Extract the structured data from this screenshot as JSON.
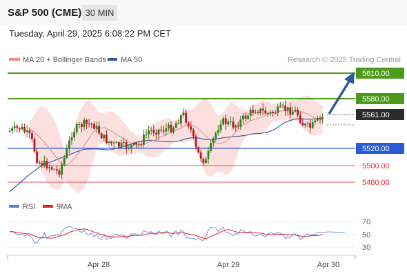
{
  "header": {
    "title": "S&P 500 (CME)",
    "timeframe": "30 MIN",
    "datetime": "Tuesday, April 29, 2025 6:08:22 PM CET"
  },
  "legend": {
    "ma20_label": "MA 20 + Bollinger Bands",
    "ma20_color": "#f08a8a",
    "ma50_label": "MA 50",
    "ma50_color": "#2c5a9c",
    "credit": "Research © 2025 Trading Central"
  },
  "rsi_legend": {
    "rsi_label": "RSI",
    "rsi_color": "#5b7fd6",
    "ma_label": "9MA",
    "ma_color": "#e02020"
  },
  "chart_data": {
    "type": "candlestick",
    "price_axis_range": [
      5470,
      5625
    ],
    "x_tick_labels": [
      "Apr 28",
      "Apr 29",
      "Apr 30"
    ],
    "current_price": "5561.00",
    "levels": [
      {
        "value": 5610,
        "label": "5610.00",
        "kind": "resistance",
        "color": "#4c9a1a"
      },
      {
        "value": 5580,
        "label": "5580.00",
        "kind": "resistance",
        "color": "#4c9a1a"
      },
      {
        "value": 5520,
        "label": "5520.00",
        "kind": "pivot",
        "color": "#2b5bd7"
      },
      {
        "value": 5500,
        "label": "5500.00",
        "kind": "support",
        "color": "#e05555"
      },
      {
        "value": 5480,
        "label": "5480.00",
        "kind": "support",
        "color": "#e05555"
      }
    ],
    "forecast_arrow": {
      "from": 5561,
      "to": 5610
    },
    "rsi_axis": {
      "range": [
        20,
        80
      ],
      "ticks": [
        "70",
        "50",
        "30"
      ]
    }
  }
}
